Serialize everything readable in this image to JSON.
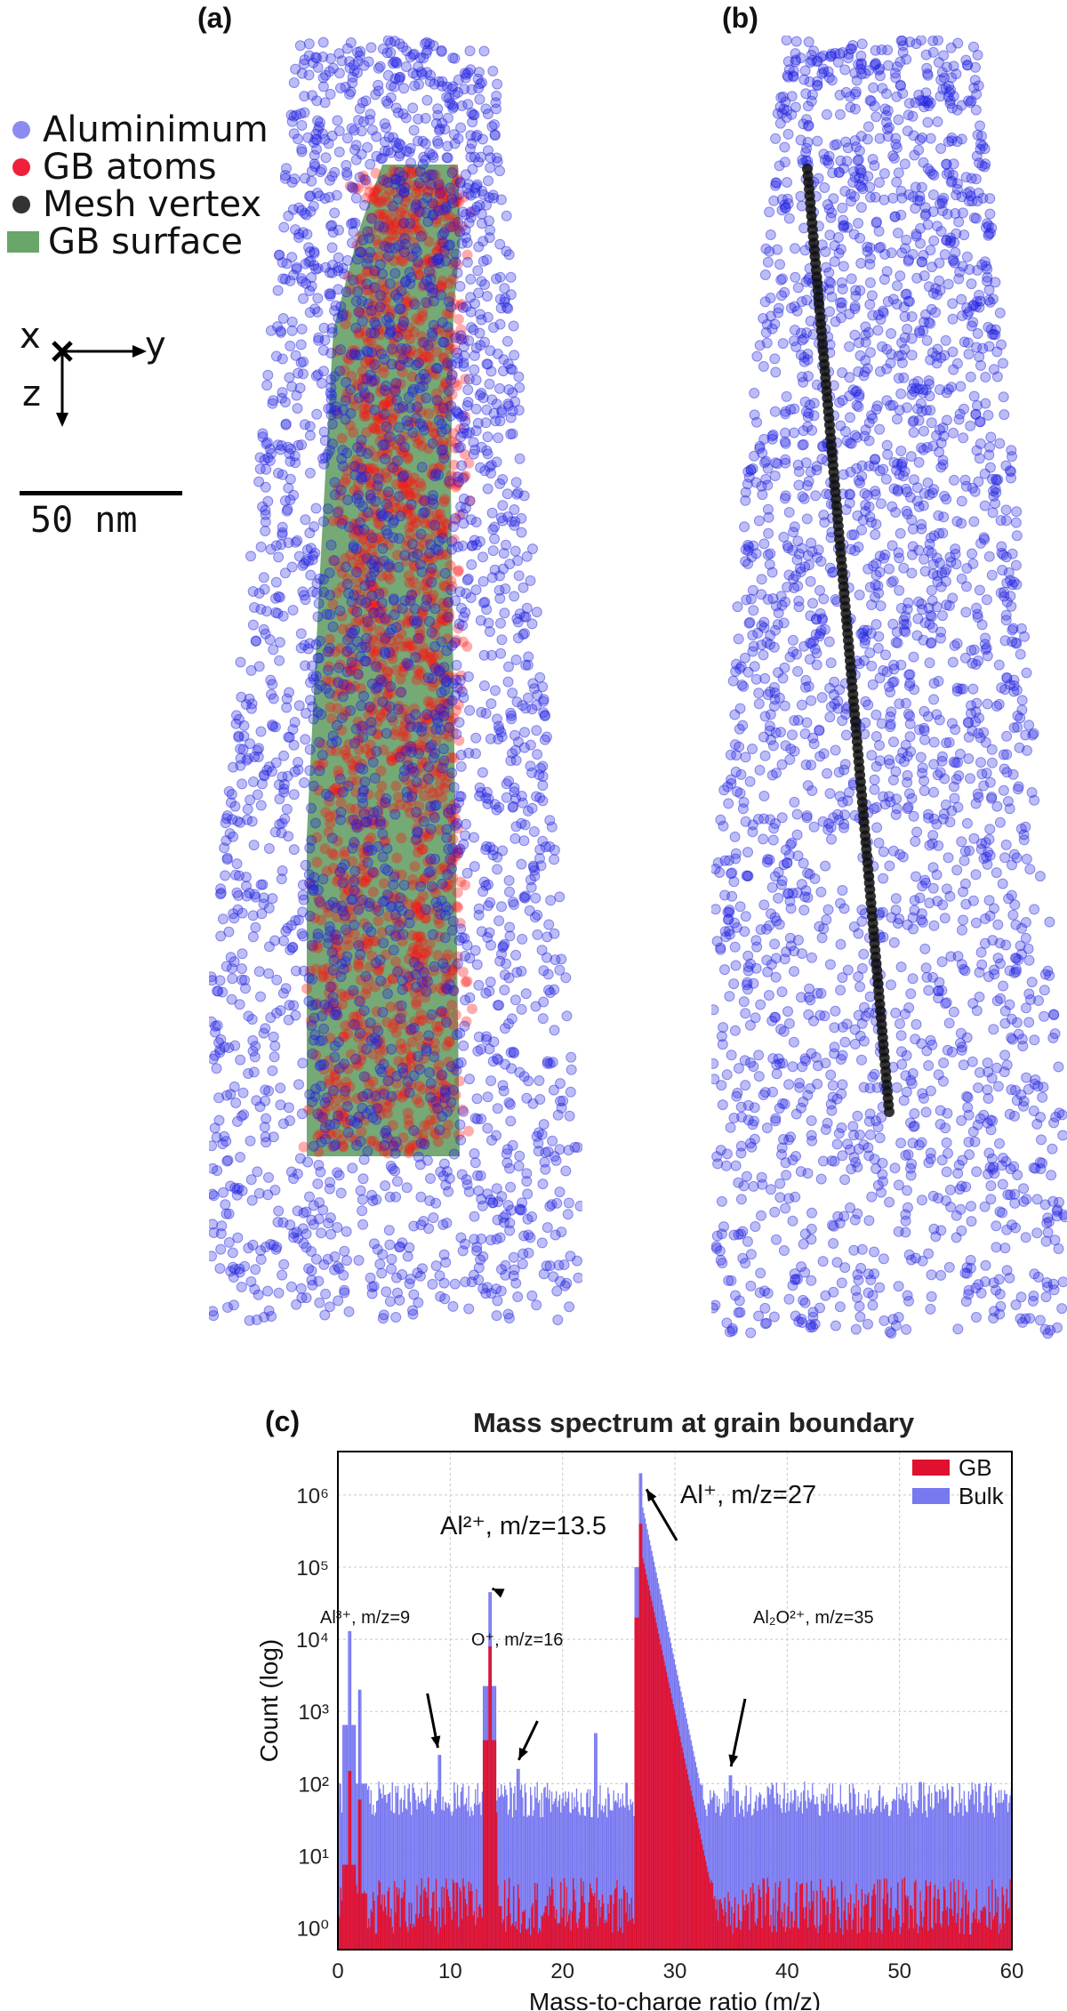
{
  "panels": {
    "a_label": "(a)",
    "b_label": "(b)",
    "c_label": "(c)"
  },
  "legend": {
    "items": [
      {
        "label": "Aluminimum",
        "color": "#8c8cf0",
        "shape": "circle"
      },
      {
        "label": "GB atoms",
        "color": "#f0203c",
        "shape": "circle"
      },
      {
        "label": "Mesh vertex",
        "color": "#333333",
        "shape": "circle"
      },
      {
        "label": "GB surface",
        "color": "#6aa56a",
        "shape": "rect"
      }
    ]
  },
  "axes_indicator": {
    "x": "x",
    "y": "y",
    "z": "z"
  },
  "scale_bar": {
    "label": "50 nm"
  },
  "colors": {
    "aluminium": "#2020e0",
    "gb_atoms": "#ff1010",
    "gb_surface": "#5d9a5d",
    "mesh_vertex": "#111111",
    "gb_bar": "#e0102f",
    "bulk_bar": "#7878f0"
  },
  "chart_data": {
    "type": "bar",
    "title": "Mass spectrum at grain boundary",
    "xlabel": "Mass-to-charge ratio (m/z)",
    "ylabel": "Count (log)",
    "x_scale": "linear",
    "y_scale": "log",
    "xlim": [
      0,
      60
    ],
    "ylim": [
      0.5,
      4000000
    ],
    "xticks": [
      "0",
      "10",
      "20",
      "30",
      "40",
      "50",
      "60"
    ],
    "yticks": [
      "10⁰",
      "10¹",
      "10²",
      "10³",
      "10⁴",
      "10⁵",
      "10⁶"
    ],
    "grid": true,
    "legend_position": "top-right",
    "series": [
      {
        "name": "GB",
        "color": "#e0102f",
        "peaks": [
          {
            "x": 1,
            "y": 150
          },
          {
            "x": 2,
            "y": 60
          },
          {
            "x": 13.5,
            "y": 8000
          },
          {
            "x": 14,
            "y": 40
          },
          {
            "x": 27,
            "y": 400000
          },
          {
            "x": 28,
            "y": 900
          },
          {
            "x": 29,
            "y": 60
          }
        ],
        "baseline": 2
      },
      {
        "name": "Bulk",
        "color": "#7878f0",
        "peaks": [
          {
            "x": 1,
            "y": 13000
          },
          {
            "x": 2,
            "y": 2000
          },
          {
            "x": 9,
            "y": 250
          },
          {
            "x": 13.5,
            "y": 45000
          },
          {
            "x": 16,
            "y": 160
          },
          {
            "x": 23,
            "y": 500
          },
          {
            "x": 27,
            "y": 2000000
          },
          {
            "x": 28,
            "y": 30000
          },
          {
            "x": 35,
            "y": 130
          }
        ],
        "baseline": 60
      }
    ],
    "annotations": [
      {
        "text": "Al²⁺, m/z=13.5",
        "x": 13.5,
        "y": 45000
      },
      {
        "text": "Al⁺, m/z=27",
        "x": 27,
        "y": 2000000
      },
      {
        "text": "Al³⁺, m/z=9",
        "x": 9,
        "y": 250
      },
      {
        "text": "O⁺, m/z=16",
        "x": 16,
        "y": 160
      },
      {
        "text": "Al₂O²⁺, m/z=35",
        "x": 35,
        "y": 130
      }
    ]
  }
}
